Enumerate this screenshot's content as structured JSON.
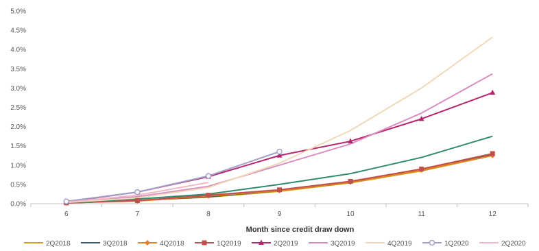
{
  "chart_data": {
    "type": "line",
    "title": "",
    "xlabel": "Month since credit draw down",
    "ylabel": "",
    "x": [
      6,
      7,
      8,
      9,
      10,
      11,
      12
    ],
    "xlim": [
      5.5,
      12.5
    ],
    "ylim": [
      0,
      5.0
    ],
    "y_ticks": [
      0,
      0.5,
      1.0,
      1.5,
      2.0,
      2.5,
      3.0,
      3.5,
      4.0,
      4.5,
      5.0
    ],
    "y_tick_labels": [
      "0.0%",
      "0.5%",
      "1.0%",
      "1.5%",
      "2.0%",
      "2.5%",
      "3.0%",
      "3.5%",
      "4.0%",
      "4.5%",
      "5.0%"
    ],
    "x_tick_labels": [
      "6",
      "7",
      "8",
      "9",
      "10",
      "11",
      "12"
    ],
    "grid": false,
    "legend_position": "bottom",
    "series": [
      {
        "name": "2Q2018",
        "color": "#d4a017",
        "marker": "none",
        "values": [
          0.02,
          0.08,
          0.17,
          0.32,
          0.54,
          0.85,
          1.25
        ]
      },
      {
        "name": "3Q2018",
        "color": "#3d5a6c",
        "marker": "none",
        "values": [
          0.02,
          0.08,
          0.18,
          0.34,
          0.56,
          0.88,
          1.28
        ]
      },
      {
        "name": "4Q2018",
        "color": "#e67e22",
        "marker": "diamond",
        "values": [
          0.02,
          0.07,
          0.2,
          0.34,
          0.56,
          0.87,
          1.25
        ]
      },
      {
        "name": "1Q2019",
        "color": "#c0504d",
        "marker": "square",
        "values": [
          0.02,
          0.08,
          0.22,
          0.36,
          0.58,
          0.9,
          1.3
        ]
      },
      {
        "name": "",
        "color": "#2e8b6f",
        "marker": "none",
        "values": [
          0.03,
          0.12,
          0.25,
          0.5,
          0.78,
          1.2,
          1.75
        ]
      },
      {
        "name": "2Q2019",
        "color": "#b8246e",
        "marker": "triangle",
        "values": [
          0.05,
          0.3,
          0.7,
          1.25,
          1.62,
          2.2,
          2.88
        ]
      },
      {
        "name": "3Q2019",
        "color": "#d98cc0",
        "marker": "none",
        "values": [
          0.04,
          0.18,
          0.45,
          1.0,
          1.55,
          2.35,
          3.37
        ]
      },
      {
        "name": "4Q2019",
        "color": "#f0d8b8",
        "marker": "none",
        "values": [
          0.03,
          0.15,
          0.42,
          1.05,
          1.9,
          3.0,
          4.32
        ]
      },
      {
        "name": "1Q2020",
        "color": "#a0a0c8",
        "marker": "circle",
        "values": [
          0.06,
          0.3,
          0.72,
          1.35,
          null,
          null,
          null
        ]
      },
      {
        "name": "2Q2020",
        "color": "#f0b8c8",
        "marker": "none",
        "values": [
          0.04,
          0.22,
          0.55,
          null,
          null,
          null,
          null
        ]
      }
    ]
  }
}
